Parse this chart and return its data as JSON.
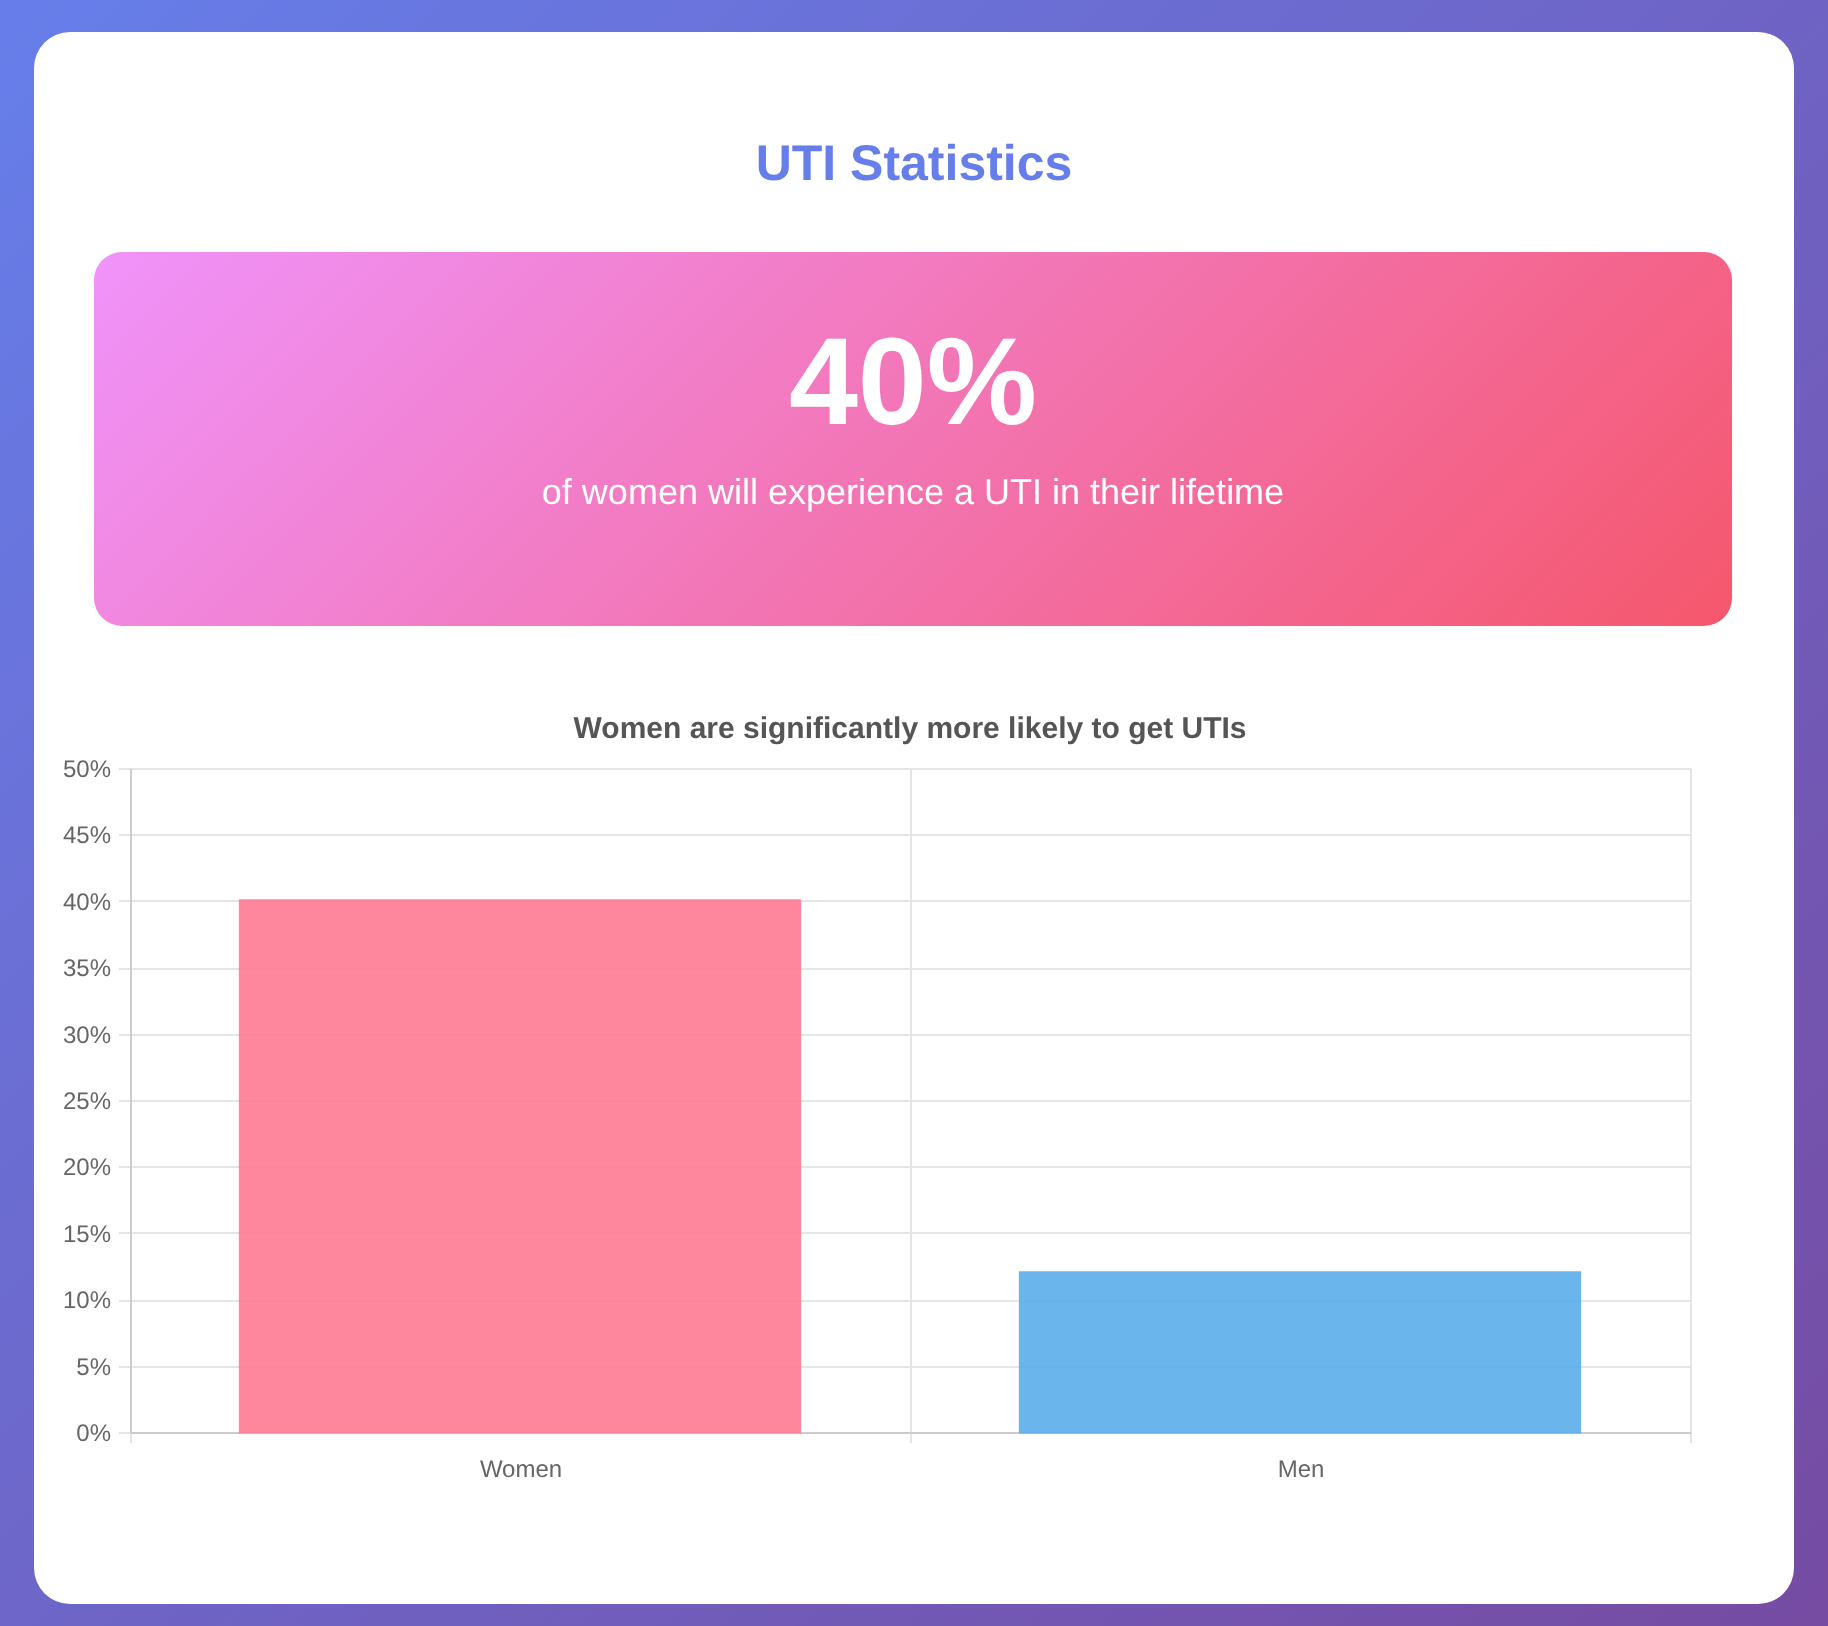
{
  "chart_data": [
    {
      "type": "other",
      "title": "UTI Statistics",
      "annotations": [
        "40%",
        "of women will experience a UTI in their lifetime"
      ]
    },
    {
      "type": "bar",
      "title": "Women are significantly more likely to get UTIs",
      "categories": [
        "Women",
        "Men"
      ],
      "values": [
        40,
        12
      ],
      "colors": [
        "#ff7b93",
        "#5aaeea"
      ],
      "ylim": [
        0,
        50
      ],
      "yticks": [
        {
          "value": 0,
          "label": "0%"
        },
        {
          "value": 5,
          "label": "5%"
        },
        {
          "value": 10,
          "label": "10%"
        },
        {
          "value": 15,
          "label": "15%"
        },
        {
          "value": 20,
          "label": "20%"
        },
        {
          "value": 25,
          "label": "25%"
        },
        {
          "value": 30,
          "label": "30%"
        },
        {
          "value": 35,
          "label": "35%"
        },
        {
          "value": 40,
          "label": "40%"
        },
        {
          "value": 45,
          "label": "45%"
        },
        {
          "value": 50,
          "label": "50%"
        }
      ],
      "grid": true
    }
  ]
}
